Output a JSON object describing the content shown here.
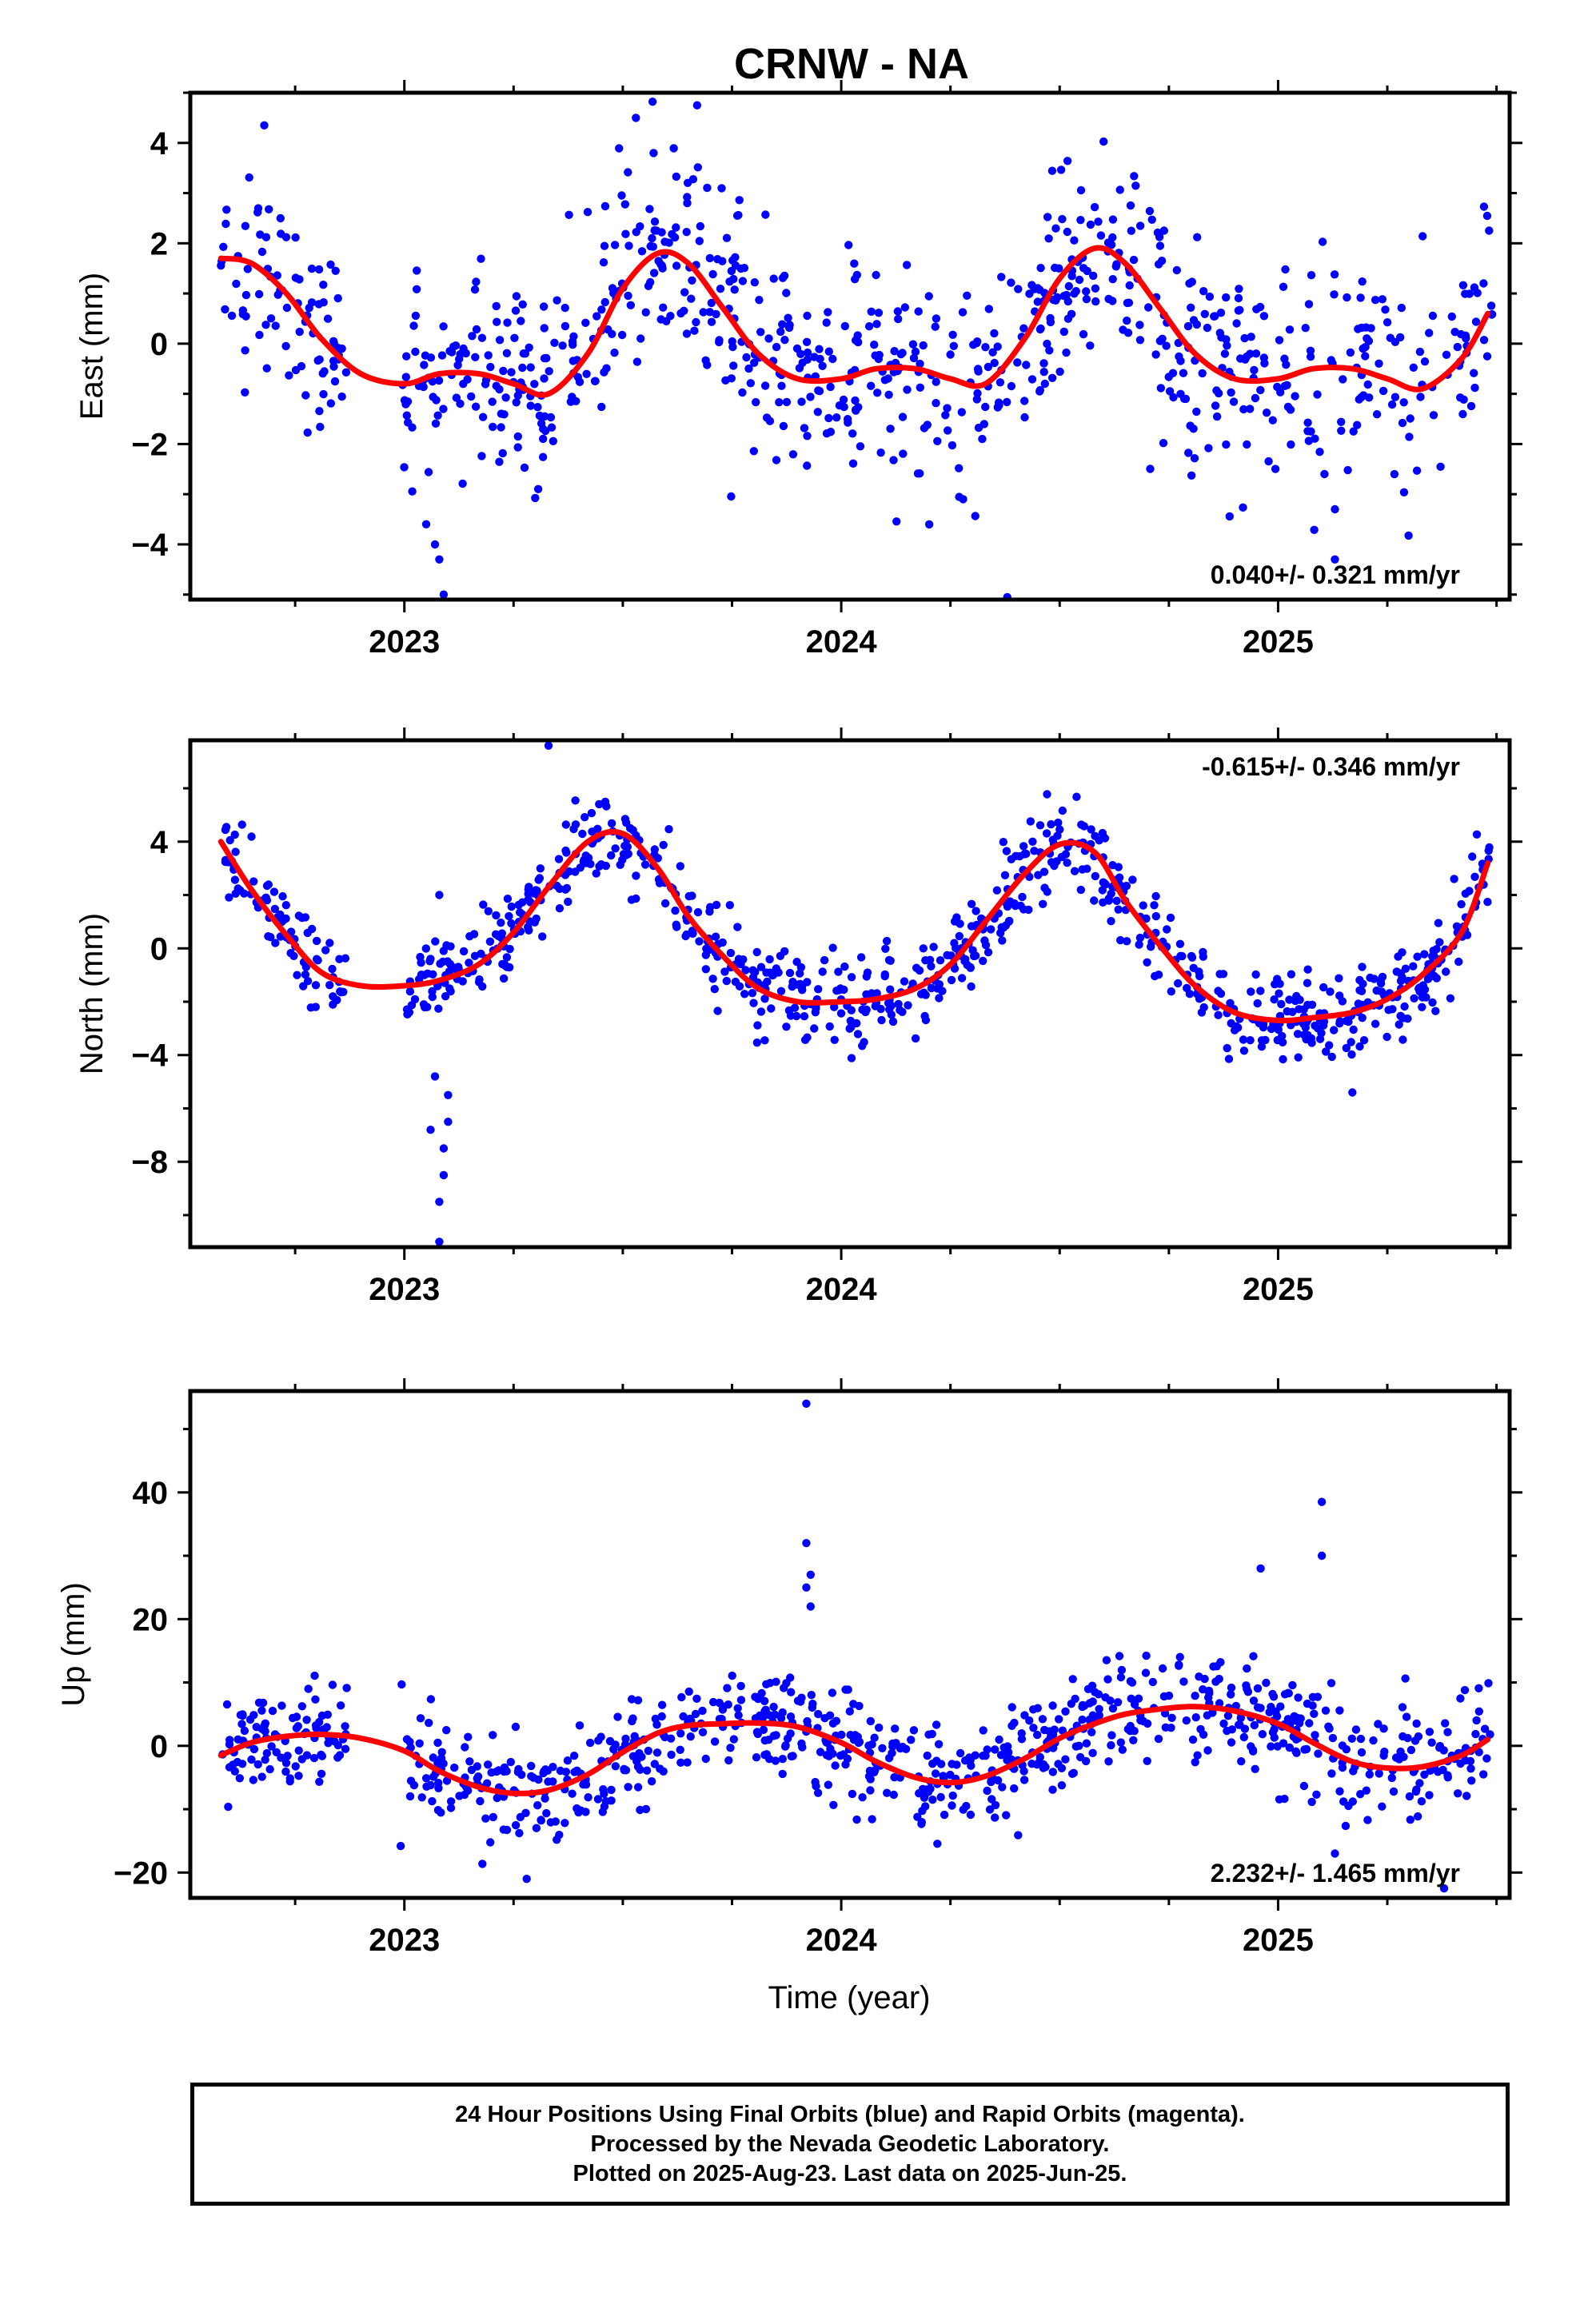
{
  "title": "CRNW - NA",
  "xlabel": "Time (year)",
  "colors": {
    "points": "#0000ff",
    "fit": "#ff0000",
    "axes": "#000000"
  },
  "footer": {
    "line1": "24 Hour Positions Using Final Orbits (blue) and Rapid Orbits (magenta).",
    "line2": "Processed by the Nevada Geodetic Laboratory.",
    "line3": "Plotted on 2025-Aug-23. Last data on 2025-Jun-25."
  },
  "chart_data": [
    {
      "type": "scatter",
      "ylabel": "East (mm)",
      "xlim": [
        2022.51,
        2025.53
      ],
      "ylim": [
        -5.1,
        5.0
      ],
      "x_ticks": [
        2023,
        2024,
        2025
      ],
      "y_ticks": [
        4,
        2,
        0,
        -2,
        -4
      ],
      "rate_label": "0.040+/- 0.321 mm/yr",
      "rate_position": "bottom-right",
      "fit": {
        "name": "",
        "x": [
          2022.58,
          2022.65,
          2022.73,
          2022.81,
          2022.9,
          2023.0,
          2023.08,
          2023.17,
          2023.25,
          2023.33,
          2023.42,
          2023.5,
          2023.58,
          2023.65,
          2023.73,
          2023.81,
          2023.9,
          2024.0,
          2024.08,
          2024.17,
          2024.25,
          2024.33,
          2024.42,
          2024.5,
          2024.58,
          2024.65,
          2024.73,
          2024.81,
          2024.9,
          2025.0,
          2025.08,
          2025.17,
          2025.25,
          2025.33,
          2025.42,
          2025.48
        ],
        "y": [
          1.7,
          1.6,
          1.0,
          0.1,
          -0.6,
          -0.8,
          -0.6,
          -0.6,
          -0.8,
          -1.0,
          -0.2,
          1.1,
          1.8,
          1.6,
          0.7,
          -0.2,
          -0.7,
          -0.7,
          -0.5,
          -0.5,
          -0.7,
          -0.8,
          0.1,
          1.3,
          1.9,
          1.6,
          0.7,
          -0.2,
          -0.7,
          -0.7,
          -0.5,
          -0.5,
          -0.7,
          -0.9,
          -0.3,
          0.6
        ]
      },
      "points_spec": {
        "count": 880,
        "x_range": [
          2022.58,
          2025.49
        ],
        "noise": 1.05,
        "gaps": [
          [
            2022.87,
            2022.99
          ]
        ],
        "outliers": [
          [
            2023.09,
            -5.0
          ],
          [
            2023.08,
            -4.3
          ],
          [
            2023.07,
            -4.0
          ],
          [
            2023.05,
            -3.6
          ],
          [
            2024.38,
            -5.05
          ],
          [
            2025.13,
            -4.3
          ],
          [
            2025.13,
            -3.3
          ],
          [
            2023.67,
            4.75
          ],
          [
            2023.53,
            4.5
          ]
        ]
      }
    },
    {
      "type": "scatter",
      "ylabel": "North (mm)",
      "xlim": [
        2022.51,
        2025.53
      ],
      "ylim": [
        -11.2,
        7.8
      ],
      "x_ticks": [
        2023,
        2024,
        2025
      ],
      "y_ticks": [
        4,
        0,
        -4,
        -8
      ],
      "rate_label": "-0.615+/- 0.346 mm/yr",
      "rate_position": "top-right",
      "fit": {
        "name": "",
        "x": [
          2022.58,
          2022.65,
          2022.73,
          2022.81,
          2022.9,
          2023.0,
          2023.08,
          2023.17,
          2023.25,
          2023.33,
          2023.42,
          2023.5,
          2023.58,
          2023.65,
          2023.73,
          2023.81,
          2023.9,
          2024.0,
          2024.08,
          2024.17,
          2024.25,
          2024.33,
          2024.42,
          2024.5,
          2024.58,
          2024.65,
          2024.73,
          2024.81,
          2024.9,
          2025.0,
          2025.08,
          2025.17,
          2025.25,
          2025.33,
          2025.42,
          2025.48
        ],
        "y": [
          4.0,
          2.2,
          0.5,
          -0.9,
          -1.4,
          -1.4,
          -1.2,
          -0.6,
          0.6,
          2.3,
          4.0,
          4.3,
          3.0,
          1.2,
          -0.3,
          -1.5,
          -2.0,
          -2.0,
          -1.9,
          -1.5,
          -0.6,
          1.0,
          2.8,
          3.9,
          3.6,
          1.8,
          0.1,
          -1.4,
          -2.4,
          -2.7,
          -2.6,
          -2.4,
          -1.9,
          -1.0,
          0.6,
          3.2
        ]
      },
      "points_spec": {
        "count": 880,
        "x_range": [
          2022.58,
          2025.49
        ],
        "noise": 0.85,
        "gaps": [
          [
            2022.87,
            2022.99
          ]
        ],
        "outliers": [
          [
            2023.08,
            -11.0
          ],
          [
            2023.08,
            -9.5
          ],
          [
            2023.09,
            -8.5
          ],
          [
            2023.09,
            -7.5
          ],
          [
            2023.1,
            -6.5
          ],
          [
            2023.1,
            -5.5
          ],
          [
            2023.06,
            -6.8
          ],
          [
            2023.07,
            -4.8
          ],
          [
            2023.33,
            7.6
          ],
          [
            2025.17,
            -5.4
          ],
          [
            2023.08,
            2.0
          ]
        ]
      }
    },
    {
      "type": "scatter",
      "ylabel": "Up (mm)",
      "xlim": [
        2022.51,
        2025.53
      ],
      "ylim": [
        -24.0,
        56.0
      ],
      "x_ticks": [
        2023,
        2024,
        2025
      ],
      "y_ticks": [
        40,
        20,
        0,
        -20
      ],
      "rate_label": "2.232+/- 1.465 mm/yr",
      "rate_position": "bottom-right",
      "fit": {
        "name": "",
        "x": [
          2022.58,
          2022.65,
          2022.73,
          2022.81,
          2022.9,
          2023.0,
          2023.08,
          2023.17,
          2023.25,
          2023.33,
          2023.42,
          2023.5,
          2023.58,
          2023.65,
          2023.73,
          2023.81,
          2023.9,
          2024.0,
          2024.08,
          2024.17,
          2024.25,
          2024.33,
          2024.42,
          2024.5,
          2024.58,
          2024.65,
          2024.73,
          2024.81,
          2024.9,
          2025.0,
          2025.08,
          2025.17,
          2025.25,
          2025.33,
          2025.42,
          2025.48
        ],
        "y": [
          -1.5,
          0.5,
          1.5,
          1.8,
          1.2,
          -0.8,
          -4.0,
          -6.5,
          -7.5,
          -7.0,
          -4.5,
          -1.0,
          2.0,
          3.2,
          3.5,
          3.6,
          3.0,
          0.5,
          -2.5,
          -5.0,
          -5.8,
          -4.8,
          -2.0,
          1.2,
          3.5,
          5.0,
          5.8,
          6.2,
          5.5,
          3.5,
          0.5,
          -2.5,
          -3.5,
          -3.3,
          -1.5,
          1.0
        ]
      },
      "points_spec": {
        "count": 880,
        "x_range": [
          2022.58,
          2025.49
        ],
        "noise": 4.3,
        "gaps": [
          [
            2022.87,
            2022.99
          ]
        ],
        "outliers": [
          [
            2023.92,
            54.0
          ],
          [
            2023.92,
            32.0
          ],
          [
            2023.93,
            27.0
          ],
          [
            2023.92,
            25.0
          ],
          [
            2023.93,
            22.0
          ],
          [
            2025.1,
            38.5
          ],
          [
            2025.1,
            30.0
          ],
          [
            2024.96,
            28.0
          ],
          [
            2025.13,
            -17.0
          ],
          [
            2025.38,
            -22.5
          ],
          [
            2023.28,
            -21.0
          ]
        ]
      }
    }
  ]
}
